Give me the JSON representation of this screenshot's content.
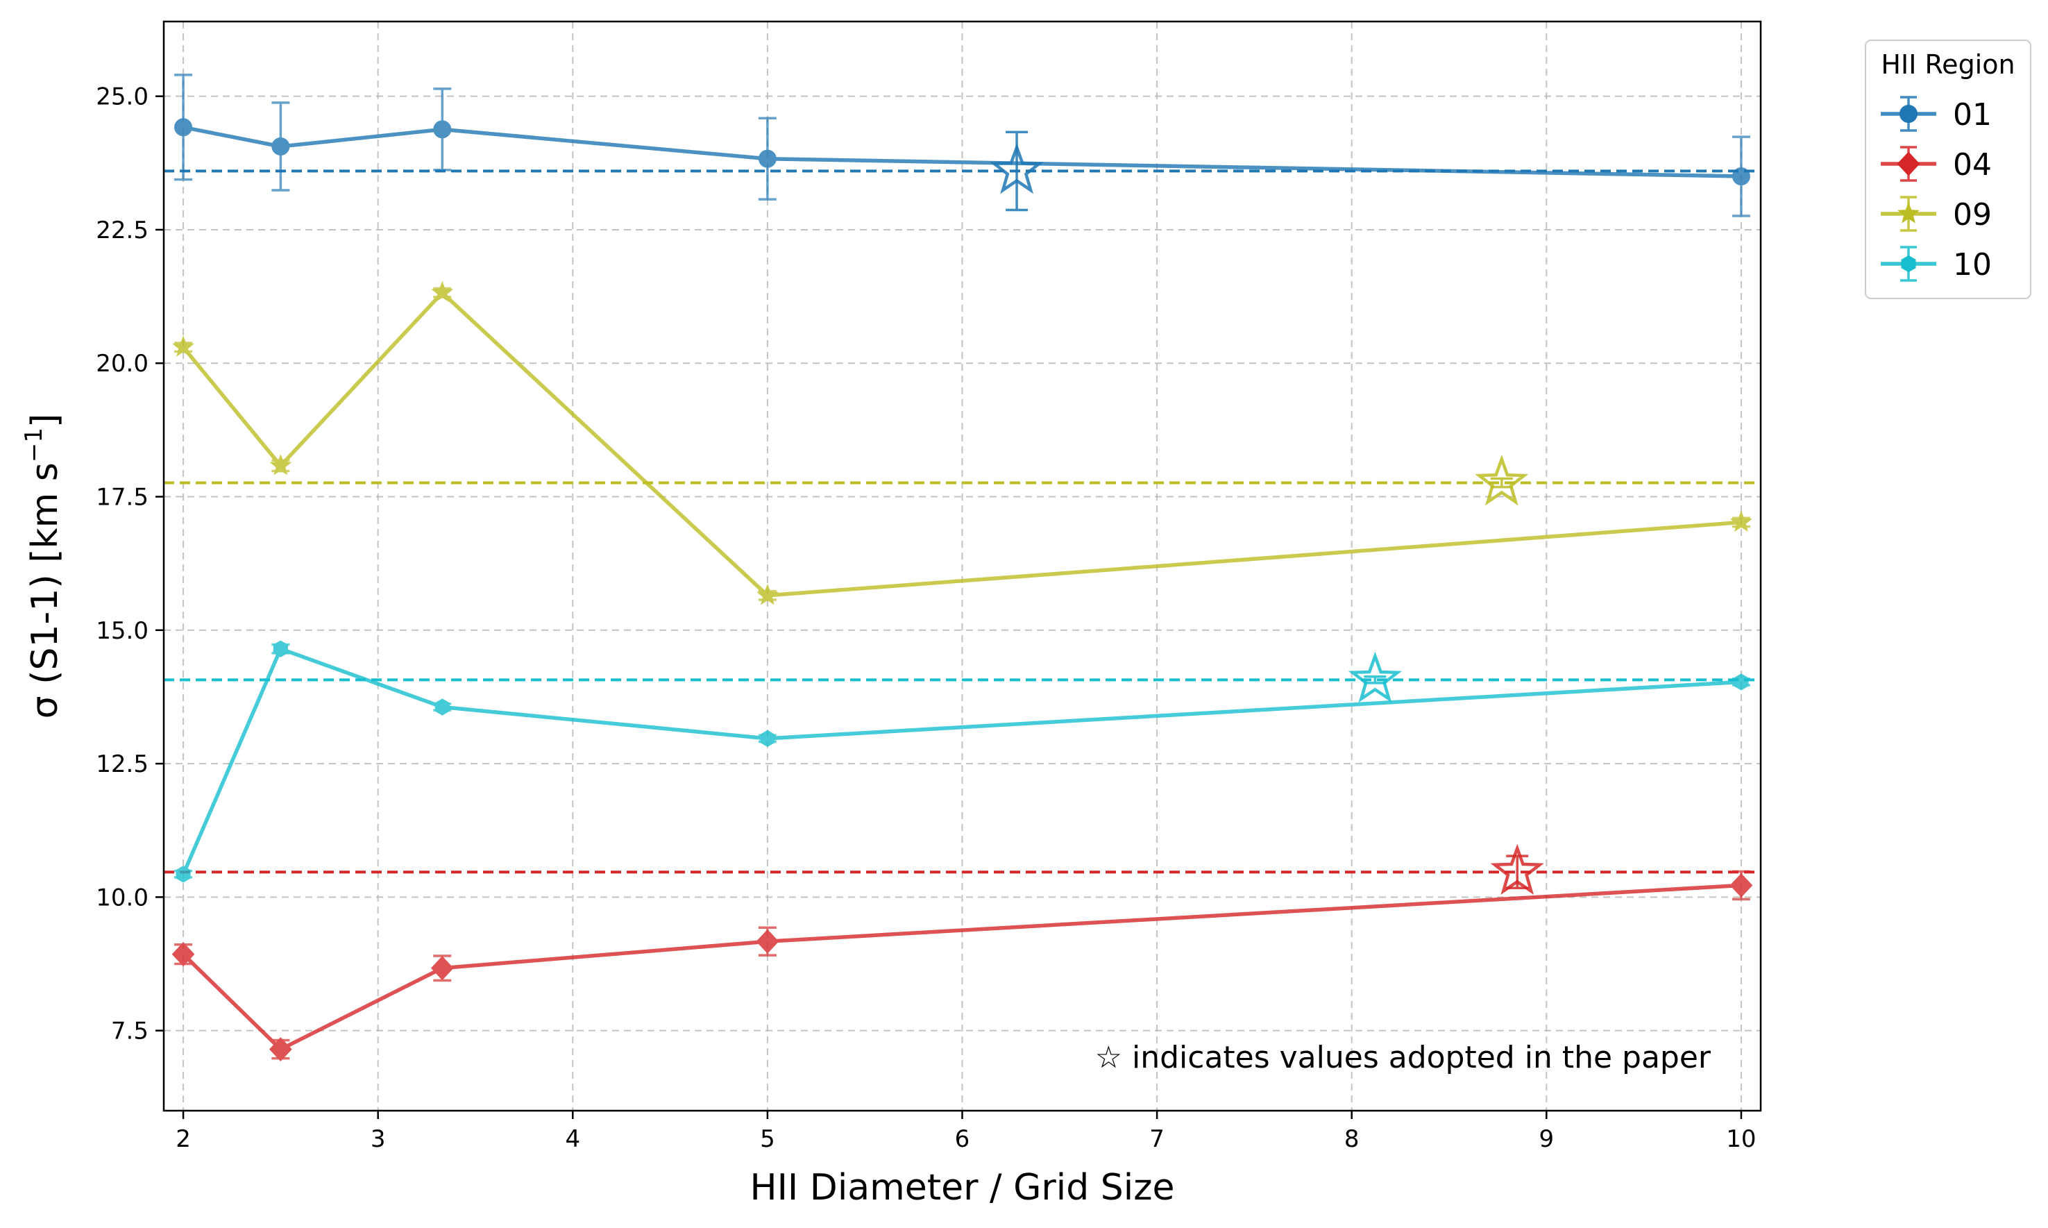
{
  "chart_data": {
    "type": "line",
    "xlabel": "HII Diameter / Grid Size",
    "ylabel_main": "σ (S1-1) [km s",
    "ylabel_sup": "−1",
    "ylabel_end": "]",
    "xlim": [
      1.9,
      10.1
    ],
    "ylim": [
      6.0,
      26.4
    ],
    "xticks": [
      2,
      3,
      4,
      5,
      6,
      7,
      8,
      9,
      10
    ],
    "xtick_labels": [
      "2",
      "3",
      "4",
      "5",
      "6",
      "7",
      "8",
      "9",
      "10"
    ],
    "yticks": [
      7.5,
      10.0,
      12.5,
      15.0,
      17.5,
      20.0,
      22.5,
      25.0
    ],
    "ytick_labels": [
      "7.5",
      "10.0",
      "12.5",
      "15.0",
      "17.5",
      "20.0",
      "22.5",
      "25.0"
    ],
    "grid": true,
    "legend_title": "HII Region",
    "legend_position": "outside top-right",
    "annotation": "☆ indicates values adopted in the paper",
    "series": [
      {
        "name": "01",
        "color": "#1f77b4",
        "marker": "circle",
        "x": [
          2,
          2.5,
          3.33,
          5,
          10
        ],
        "y": [
          24.42,
          24.06,
          24.38,
          23.83,
          23.5
        ],
        "yerr": [
          0.98,
          0.82,
          0.76,
          0.76,
          0.74
        ],
        "adopted": {
          "x": 6.28,
          "y": 23.6,
          "yerr": 0.73
        }
      },
      {
        "name": "04",
        "color": "#d62728",
        "marker": "diamond",
        "x": [
          2,
          2.5,
          3.33,
          5,
          10
        ],
        "y": [
          8.93,
          7.15,
          8.67,
          9.17,
          10.22
        ],
        "yerr": [
          0.18,
          0.17,
          0.23,
          0.26,
          0.26
        ],
        "adopted": {
          "x": 8.85,
          "y": 10.47,
          "yerr": 0.3
        }
      },
      {
        "name": "09",
        "color": "#bcbd22",
        "marker": "star",
        "x": [
          2,
          2.5,
          3.33,
          5,
          10
        ],
        "y": [
          20.3,
          18.08,
          21.32,
          15.65,
          17.02
        ],
        "yerr": [
          0.08,
          0.1,
          0.08,
          0.08,
          0.08
        ],
        "adopted": {
          "x": 8.77,
          "y": 17.76,
          "yerr": 0.08
        }
      },
      {
        "name": "10",
        "color": "#17becf",
        "marker": "hexagon",
        "x": [
          2,
          2.5,
          3.33,
          5,
          10
        ],
        "y": [
          10.43,
          14.65,
          13.56,
          12.97,
          14.03
        ],
        "yerr": [
          0.06,
          0.08,
          0.06,
          0.06,
          0.06
        ],
        "adopted": {
          "x": 8.12,
          "y": 14.07,
          "yerr": 0.06
        }
      }
    ]
  }
}
